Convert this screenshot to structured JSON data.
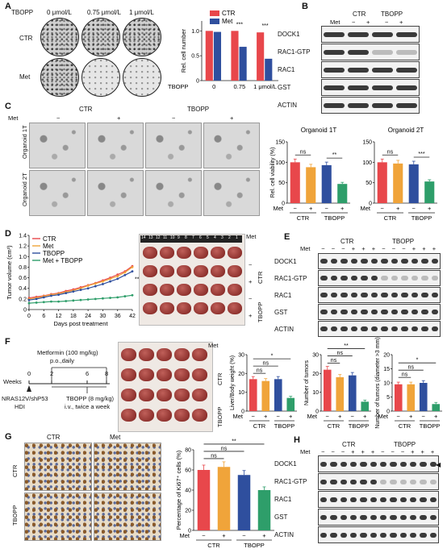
{
  "panels": {
    "A": {
      "letter": "A",
      "header_label": "TBOPP",
      "conditions": [
        "0 μmol/L",
        "0.75 μmol/L",
        "1 μmol/L"
      ],
      "rows": [
        "CTR",
        "Met"
      ],
      "chart": {
        "type": "bar",
        "ylabel": "Rel. cell number",
        "xaxis_label": "TBOPP",
        "categories": [
          "0",
          "0.75",
          "1 μmol/L"
        ],
        "series": [
          {
            "name": "CTR",
            "color": "#e8474b",
            "values": [
              1.0,
              1.0,
              0.97
            ]
          },
          {
            "name": "Met",
            "color": "#2f4f9e",
            "values": [
              0.98,
              0.68,
              0.44
            ]
          }
        ],
        "yticks": [
          "0",
          "0.5",
          "1.0"
        ],
        "ylim": [
          0,
          1.2
        ],
        "significance": [
          "***",
          "***"
        ]
      }
    },
    "B": {
      "letter": "B",
      "met_label": "Met",
      "groups": [
        "CTR",
        "TBOPP"
      ],
      "lanes": [
        "−",
        "+",
        "−",
        "+"
      ],
      "blots": [
        "DOCK1",
        "RAC1-GTP",
        "RAC1",
        "GST",
        "ACTIN"
      ]
    },
    "C": {
      "letter": "C",
      "groups": [
        "CTR",
        "TBOPP"
      ],
      "met_label": "Met",
      "lanes": [
        "−",
        "+",
        "−",
        "+"
      ],
      "rows": [
        "Organoid 1T",
        "Organoid 2T"
      ],
      "charts": [
        {
          "type": "bar",
          "title": "Organoid 1T",
          "ylabel": "Rel. cell viability (%)",
          "categories": [
            "CTR −",
            "CTR +",
            "TBOPP −",
            "TBOPP +"
          ],
          "values": [
            100,
            88,
            93,
            47
          ],
          "colors": [
            "#e8474b",
            "#f0a43a",
            "#2f4f9e",
            "#2e9e6a"
          ],
          "yticks": [
            "0",
            "50",
            "100",
            "150"
          ],
          "ylim": [
            0,
            150
          ],
          "significance": [
            "ns",
            "**"
          ],
          "met_label": "Met",
          "met_signs": [
            "−",
            "+",
            "−",
            "+"
          ],
          "group_labels": [
            "CTR",
            "TBOPP"
          ]
        },
        {
          "type": "bar",
          "title": "Organoid 2T",
          "ylabel": "",
          "categories": [
            "CTR −",
            "CTR +",
            "TBOPP −",
            "TBOPP +"
          ],
          "values": [
            100,
            97,
            95,
            53
          ],
          "colors": [
            "#e8474b",
            "#f0a43a",
            "#2f4f9e",
            "#2e9e6a"
          ],
          "yticks": [
            "0",
            "50",
            "100",
            "150"
          ],
          "ylim": [
            0,
            150
          ],
          "significance": [
            "ns",
            "***"
          ],
          "met_label": "Met",
          "met_signs": [
            "−",
            "+",
            "−",
            "+"
          ],
          "group_labels": [
            "CTR",
            "TBOPP"
          ]
        }
      ]
    },
    "D": {
      "letter": "D",
      "chart": {
        "type": "line",
        "ylabel": "Tumor volume (cm³)",
        "xlabel": "Days post treatment",
        "x": [
          0,
          3,
          6,
          9,
          12,
          15,
          18,
          21,
          24,
          27,
          30,
          33,
          36,
          39,
          42
        ],
        "xticks": [
          "0",
          "6",
          "12",
          "18",
          "24",
          "30",
          "36",
          "42"
        ],
        "yticks": [
          "0",
          "0.2",
          "0.4",
          "0.6",
          "0.8",
          "1.0",
          "1.2",
          "1.4"
        ],
        "ylim": [
          0,
          1.4
        ],
        "significance": "**",
        "series": [
          {
            "name": "CTR",
            "color": "#e8474b",
            "values": [
              0.22,
              0.24,
              0.26,
              0.29,
              0.31,
              0.35,
              0.38,
              0.42,
              0.46,
              0.5,
              0.55,
              0.6,
              0.66,
              0.72,
              0.82
            ]
          },
          {
            "name": "Met",
            "color": "#f0a43a",
            "values": [
              0.2,
              0.22,
              0.25,
              0.28,
              0.3,
              0.33,
              0.36,
              0.4,
              0.45,
              0.49,
              0.53,
              0.58,
              0.63,
              0.7,
              0.8
            ]
          },
          {
            "name": "TBOPP",
            "color": "#2f4f9e",
            "values": [
              0.18,
              0.2,
              0.23,
              0.26,
              0.28,
              0.31,
              0.34,
              0.37,
              0.4,
              0.44,
              0.48,
              0.53,
              0.58,
              0.65,
              0.72
            ]
          },
          {
            "name": "Met + TBOPP",
            "color": "#2e9e6a",
            "values": [
              0.12,
              0.13,
              0.14,
              0.15,
              0.15,
              0.16,
              0.17,
              0.18,
              0.19,
              0.2,
              0.21,
              0.22,
              0.23,
              0.25,
              0.27
            ]
          }
        ]
      },
      "photo_label_met": "Met",
      "photo_side_labels": [
        "CTR",
        "TBOPP"
      ],
      "photo_signs": [
        "−",
        "+",
        "−",
        "+"
      ],
      "ruler": [
        "14",
        "13",
        "12",
        "11",
        "10",
        "9",
        "8",
        "7",
        "6",
        "5",
        "4",
        "3",
        "2",
        "1"
      ]
    },
    "E": {
      "letter": "E",
      "groups": [
        "CTR",
        "TBOPP"
      ],
      "met_label": "Met",
      "lanes": [
        "−",
        "−",
        "−",
        "+",
        "+",
        "+",
        "−",
        "−",
        "−",
        "+",
        "+",
        "+"
      ],
      "blots": [
        "DOCK1",
        "RAC1-GTP",
        "RAC1",
        "GST",
        "ACTIN"
      ]
    },
    "F": {
      "letter": "F",
      "timeline": {
        "weeks_label": "Weeks",
        "ticks": [
          "0",
          "2",
          "6",
          "8"
        ],
        "top_text_1": "Metformin (100 mg/kg)",
        "top_text_2": "p.o.,daily",
        "bottom_left_1": "NRAS12V/shP53",
        "bottom_left_2": "HDI",
        "bottom_right_1": "TBOPP (8 mg/kg)",
        "bottom_right_2": "i.v., twice a week"
      },
      "photo_label_met": "Met",
      "photo_side_labels": [
        "CTR",
        "TBOPP"
      ],
      "charts": [
        {
          "type": "bar",
          "ylabel": "Liver/Body weight (%)",
          "values": [
            17,
            16,
            17,
            7
          ],
          "yticks": [
            "0",
            "10",
            "20",
            "30"
          ],
          "ylim": [
            0,
            30
          ],
          "significance": [
            "ns",
            "ns",
            "*"
          ]
        },
        {
          "type": "bar",
          "ylabel": "Number of tumors",
          "values": [
            22,
            18,
            19,
            5
          ],
          "yticks": [
            "0",
            "10",
            "20",
            "30"
          ],
          "ylim": [
            0,
            30
          ],
          "significance": [
            "ns",
            "ns",
            "**"
          ]
        },
        {
          "type": "bar",
          "ylabel": "Number of tumors (diameter >3 mm)",
          "values": [
            9.5,
            9.5,
            10,
            2.5
          ],
          "yticks": [
            "0",
            "5",
            "10",
            "15",
            "20"
          ],
          "ylim": [
            0,
            20
          ],
          "significance": [
            "ns",
            "ns",
            "*"
          ]
        }
      ],
      "colors": [
        "#e8474b",
        "#f0a43a",
        "#2f4f9e",
        "#2e9e6a"
      ],
      "met_label": "Met",
      "met_signs": [
        "−",
        "+",
        "−",
        "+"
      ],
      "group_labels": [
        "CTR",
        "TBOPP"
      ]
    },
    "G": {
      "letter": "G",
      "cols": [
        "CTR",
        "Met"
      ],
      "rows": [
        "CTR",
        "TBOPP"
      ],
      "chart": {
        "type": "bar",
        "ylabel": "Percentage of Ki67⁺ cells (%)",
        "values": [
          60,
          63,
          55,
          40
        ],
        "colors": [
          "#e8474b",
          "#f0a43a",
          "#2f4f9e",
          "#2e9e6a"
        ],
        "yticks": [
          "0",
          "20",
          "40",
          "60",
          "80"
        ],
        "ylim": [
          0,
          80
        ],
        "significance": [
          "ns",
          "ns",
          "**"
        ],
        "met_label": "Met",
        "met_signs": [
          "−",
          "+",
          "−",
          "+"
        ],
        "group_labels": [
          "CTR",
          "TBOPP"
        ]
      }
    },
    "H": {
      "letter": "H",
      "groups": [
        "CTR",
        "TBOPP"
      ],
      "met_label": "Met",
      "lanes": [
        "−",
        "−",
        "−",
        "+",
        "+",
        "+",
        "−",
        "−",
        "−",
        "+",
        "+",
        "+"
      ],
      "blots": [
        "DOCK1",
        "RAC1-GTP",
        "RAC1",
        "GST",
        "ACTIN"
      ]
    }
  }
}
